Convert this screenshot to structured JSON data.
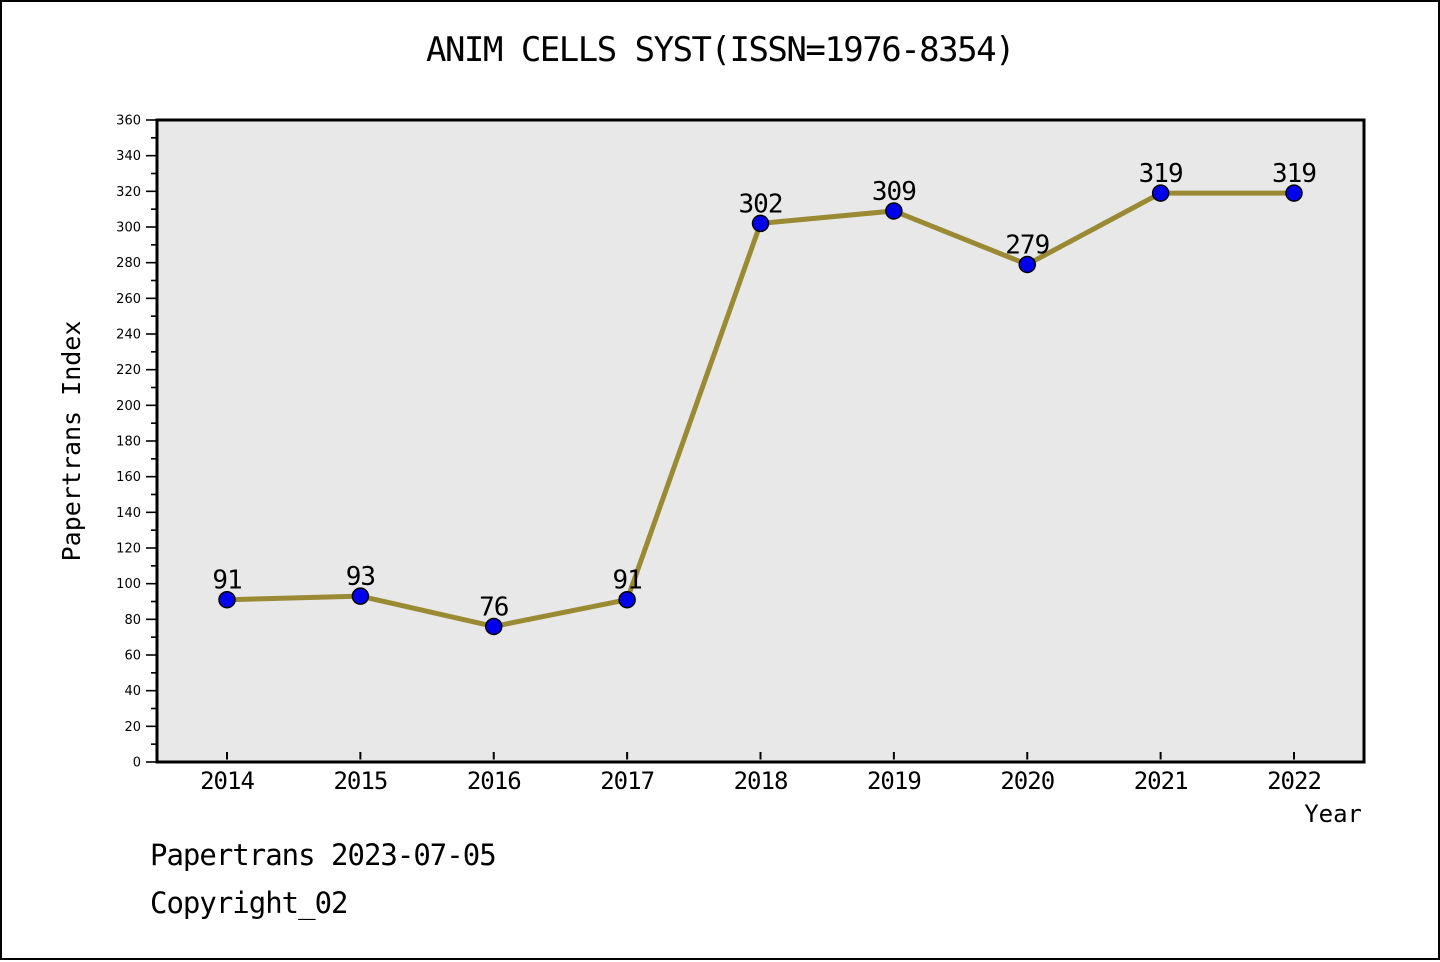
{
  "title": "ANIM CELLS SYST(ISSN=1976-8354)",
  "footer": {
    "line1": "Papertrans 2023-07-05",
    "line2": "Copyright_02"
  },
  "chart_data": {
    "type": "line",
    "title": "ANIM CELLS SYST(ISSN=1976-8354)",
    "categories": [
      "2014",
      "2015",
      "2016",
      "2017",
      "2018",
      "2019",
      "2020",
      "2021",
      "2022"
    ],
    "values": [
      91,
      93,
      76,
      91,
      302,
      309,
      279,
      319,
      319
    ],
    "xlabel": "Year",
    "ylabel": "Papertrans Index",
    "ylim": [
      0,
      360
    ],
    "ytick_major": 20,
    "ytick_minor": 10,
    "grid": false,
    "legend": "none",
    "colors": {
      "line": "#9a8a33",
      "marker": "#0000ee",
      "marker_edge": "#000000",
      "plot_bg": "#e8e8e8",
      "page_bg": "#ffffff",
      "text": "#000000"
    }
  }
}
